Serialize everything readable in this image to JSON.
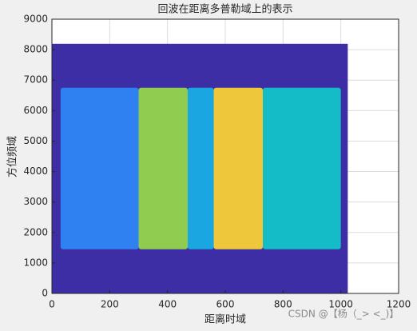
{
  "chart_data": {
    "type": "image",
    "title": "回波在距离多普勒域上的表示",
    "xlabel": "距离时域",
    "ylabel": "方位频域",
    "watermark": "CSDN @【杨（_> <_)】",
    "xlim": [
      0,
      1200
    ],
    "xticks": [
      0,
      200,
      400,
      600,
      800,
      1000,
      1200
    ],
    "ylim": [
      0,
      9000
    ],
    "yticks": [
      0,
      1000,
      2000,
      3000,
      4000,
      5000,
      6000,
      7000,
      8000,
      9000
    ],
    "grid": true,
    "extent": {
      "x": [
        0,
        1024
      ],
      "y": [
        0,
        8192
      ],
      "color": "#3e2ea6"
    },
    "band_y": [
      1450,
      6750
    ],
    "columns": [
      {
        "x": [
          30,
          300
        ],
        "color": "#2f80f0"
      },
      {
        "x": [
          300,
          470
        ],
        "color": "#8fcc50"
      },
      {
        "x": [
          470,
          560
        ],
        "color": "#1aa6e0"
      },
      {
        "x": [
          560,
          730
        ],
        "color": "#eec83a"
      },
      {
        "x": [
          730,
          1000
        ],
        "color": "#14bcc8"
      }
    ]
  }
}
